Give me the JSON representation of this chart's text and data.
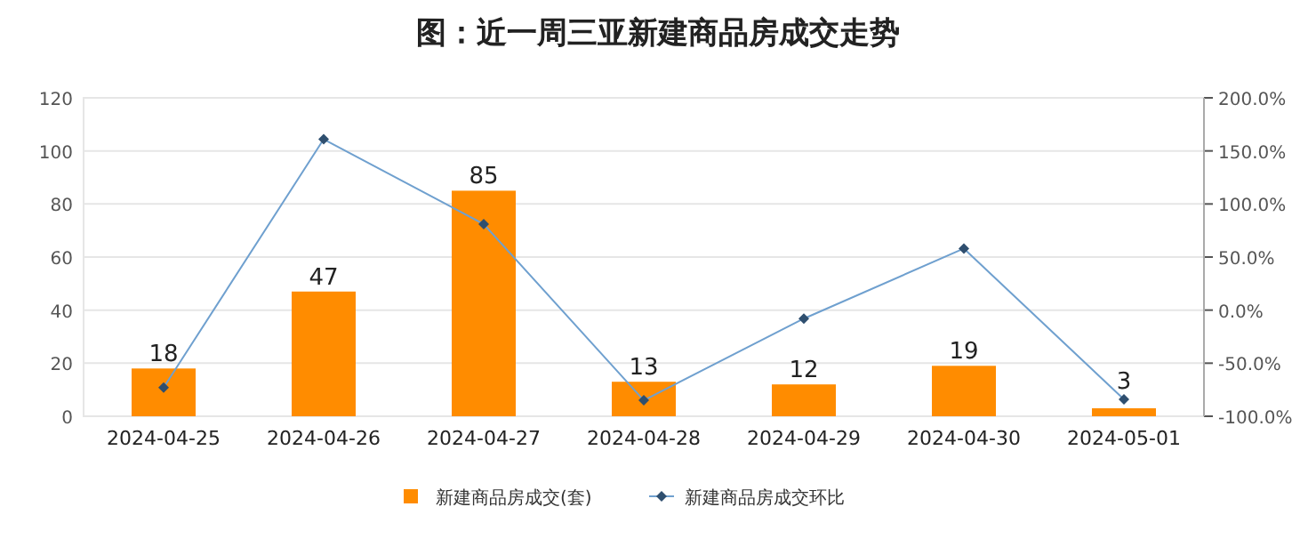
{
  "chart_data": {
    "type": "bar",
    "title": "图：近一周三亚新建商品房成交走势",
    "categories": [
      "2024-04-25",
      "2024-04-26",
      "2024-04-27",
      "2024-04-28",
      "2024-04-29",
      "2024-04-30",
      "2024-05-01"
    ],
    "series": [
      {
        "name": "新建商品房成交(套)",
        "color": "#ff8c00",
        "values": [
          18,
          47,
          85,
          13,
          12,
          19,
          3
        ],
        "value_labels": [
          "18",
          "47",
          "85",
          "13",
          "12",
          "19",
          "3"
        ]
      },
      {
        "name": "新建商品房成交环比",
        "type": "line",
        "axis": "y2",
        "color": "#6fa0cf",
        "marker": "diamond",
        "values": [
          -73,
          161,
          81,
          -85,
          -8,
          58,
          -84
        ]
      }
    ],
    "ylim": [
      0,
      120
    ],
    "yticks": [
      0,
      20,
      40,
      60,
      80,
      100,
      120
    ],
    "y2lim": [
      -100,
      200
    ],
    "y2ticks": [
      {
        "value": -100,
        "label": "-100.0%"
      },
      {
        "value": -50,
        "label": "-50.0%"
      },
      {
        "value": 0,
        "label": "0.0%"
      },
      {
        "value": 50,
        "label": "50.0%"
      },
      {
        "value": 100,
        "label": "100.0%"
      },
      {
        "value": 150,
        "label": "150.0%"
      },
      {
        "value": 200,
        "label": "200.0%"
      }
    ],
    "grid": "y",
    "legend": "bottom"
  }
}
